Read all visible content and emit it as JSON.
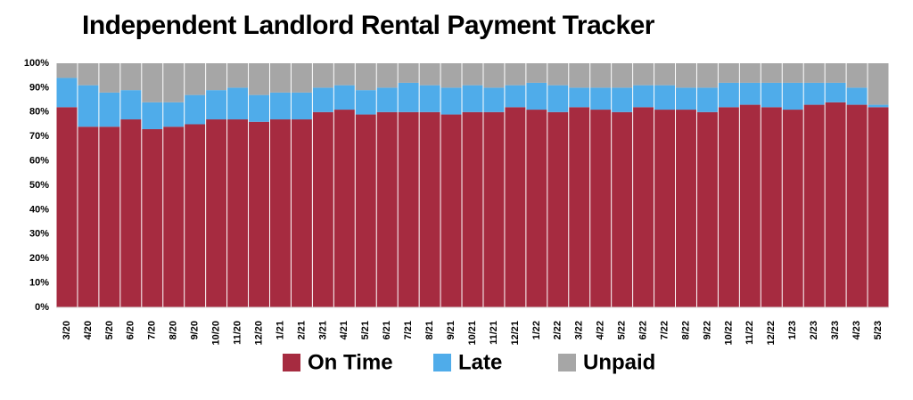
{
  "chart_data": {
    "type": "stacked_bar",
    "title": "Independent Landlord Rental Payment Tracker",
    "categories": [
      "3/20",
      "4/20",
      "5/20",
      "6/20",
      "7/20",
      "8/20",
      "9/20",
      "10/20",
      "11/20",
      "12/20",
      "1/21",
      "2/21",
      "3/21",
      "4/21",
      "5/21",
      "6/21",
      "7/21",
      "8/21",
      "9/21",
      "10/21",
      "11/21",
      "12/21",
      "1/22",
      "2/22",
      "3/22",
      "4/22",
      "5/22",
      "6/22",
      "7/22",
      "8/22",
      "9/22",
      "10/22",
      "11/22",
      "12/22",
      "1/23",
      "2/23",
      "3/23",
      "4/23",
      "5/23"
    ],
    "series": [
      {
        "name": "On Time",
        "color": "#a62b40",
        "values": [
          82,
          74,
          74,
          77,
          73,
          74,
          75,
          77,
          77,
          76,
          77,
          77,
          80,
          81,
          79,
          80,
          80,
          80,
          79,
          80,
          80,
          82,
          81,
          80,
          82,
          81,
          80,
          82,
          81,
          81,
          80,
          82,
          83,
          82,
          81,
          83,
          84,
          83,
          82
        ]
      },
      {
        "name": "Late",
        "color": "#4facea",
        "values": [
          12,
          17,
          14,
          12,
          11,
          10,
          12,
          12,
          13,
          11,
          11,
          11,
          10,
          10,
          10,
          10,
          12,
          11,
          11,
          11,
          10,
          9,
          11,
          11,
          8,
          9,
          10,
          9,
          10,
          9,
          10,
          10,
          9,
          10,
          11,
          9,
          8,
          7,
          1
        ]
      },
      {
        "name": "Unpaid",
        "color": "#a6a6a6",
        "values": [
          6,
          9,
          12,
          11,
          16,
          16,
          13,
          11,
          10,
          13,
          12,
          12,
          10,
          9,
          11,
          10,
          8,
          9,
          10,
          9,
          10,
          9,
          8,
          9,
          10,
          10,
          10,
          9,
          9,
          10,
          10,
          8,
          8,
          8,
          8,
          8,
          8,
          10,
          17
        ]
      }
    ],
    "ylim": [
      0,
      100
    ],
    "yticks": [
      {
        "value": 0,
        "label": "0%"
      },
      {
        "value": 10,
        "label": "10%"
      },
      {
        "value": 20,
        "label": "20%"
      },
      {
        "value": 30,
        "label": "30%"
      },
      {
        "value": 40,
        "label": "40%"
      },
      {
        "value": 50,
        "label": "50%"
      },
      {
        "value": 60,
        "label": "60%"
      },
      {
        "value": 70,
        "label": "70%"
      },
      {
        "value": 80,
        "label": "80%"
      },
      {
        "value": 90,
        "label": "90%"
      },
      {
        "value": 100,
        "label": "100%"
      }
    ],
    "legend": "bottom"
  }
}
